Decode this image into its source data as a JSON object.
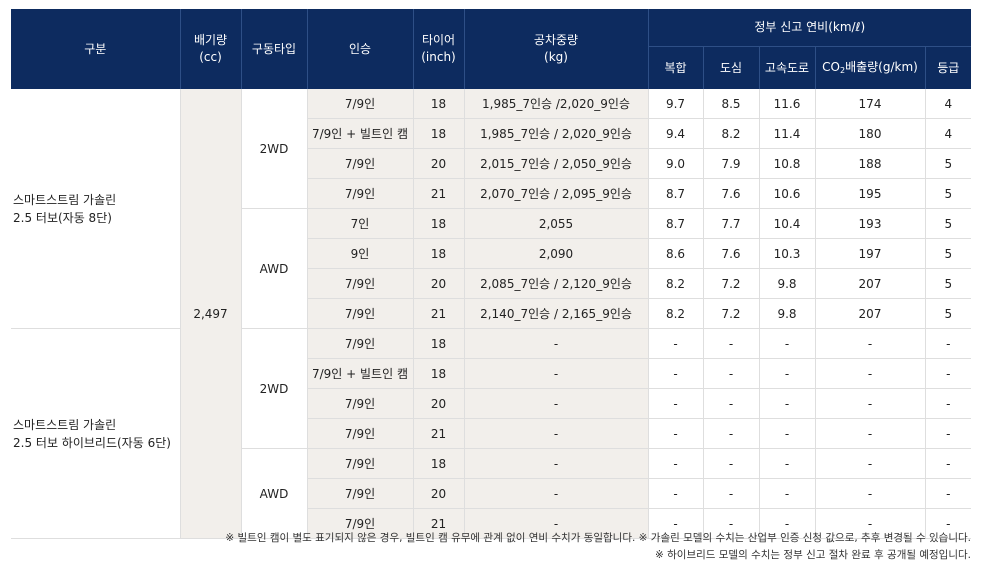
{
  "header": {
    "gubun": "구분",
    "displacement": "배기량",
    "displacement_unit": "(cc)",
    "drive": "구동타입",
    "seats": "인승",
    "tire": "타이어",
    "tire_unit": "(inch)",
    "weight": "공차중량",
    "weight_unit": "(kg)",
    "fuel_group": "정부 신고 연비(km/ℓ)",
    "combined": "복합",
    "city": "도심",
    "highway": "고속도로",
    "co2_prefix": "CO",
    "co2_sub": "2",
    "co2_suffix": "배출량(g/km)",
    "grade": "등급"
  },
  "groups": [
    {
      "label_line1": "스마트스트림 가솔린",
      "label_line2": "2.5 터보(자동 8단)",
      "drives": [
        {
          "drive": "2WD",
          "rows": [
            {
              "seats": "7/9인",
              "tire": "18",
              "weight": "1,985_7인승  /2,020_9인승",
              "combined": "9.7",
              "city": "8.5",
              "highway": "11.6",
              "co2": "174",
              "grade": "4"
            },
            {
              "seats": "7/9인 + 빌트인 캠",
              "tire": "18",
              "weight": "1,985_7인승 / 2,020_9인승",
              "combined": "9.4",
              "city": "8.2",
              "highway": "11.4",
              "co2": "180",
              "grade": "4"
            },
            {
              "seats": "7/9인",
              "tire": "20",
              "weight": "2,015_7인승 / 2,050_9인승",
              "combined": "9.0",
              "city": "7.9",
              "highway": "10.8",
              "co2": "188",
              "grade": "5"
            },
            {
              "seats": "7/9인",
              "tire": "21",
              "weight": "2,070_7인승 / 2,095_9인승",
              "combined": "8.7",
              "city": "7.6",
              "highway": "10.6",
              "co2": "195",
              "grade": "5"
            }
          ]
        },
        {
          "drive": "AWD",
          "rows": [
            {
              "seats": "7인",
              "tire": "18",
              "weight": "2,055",
              "combined": "8.7",
              "city": "7.7",
              "highway": "10.4",
              "co2": "193",
              "grade": "5"
            },
            {
              "seats": "9인",
              "tire": "18",
              "weight": "2,090",
              "combined": "8.6",
              "city": "7.6",
              "highway": "10.3",
              "co2": "197",
              "grade": "5"
            },
            {
              "seats": "7/9인",
              "tire": "20",
              "weight": "2,085_7인승 / 2,120_9인승",
              "combined": "8.2",
              "city": "7.2",
              "highway": "9.8",
              "co2": "207",
              "grade": "5"
            },
            {
              "seats": "7/9인",
              "tire": "21",
              "weight": "2,140_7인승 / 2,165_9인승",
              "combined": "8.2",
              "city": "7.2",
              "highway": "9.8",
              "co2": "207",
              "grade": "5"
            }
          ]
        }
      ]
    },
    {
      "label_line1": "스마트스트림 가솔린",
      "label_line2": "2.5 터보 하이브리드(자동 6단)",
      "drives": [
        {
          "drive": "2WD",
          "rows": [
            {
              "seats": "7/9인",
              "tire": "18",
              "weight": "-",
              "combined": "-",
              "city": "-",
              "highway": "-",
              "co2": "-",
              "grade": "-"
            },
            {
              "seats": "7/9인 + 빌트인 캠",
              "tire": "18",
              "weight": "-",
              "combined": "-",
              "city": "-",
              "highway": "-",
              "co2": "-",
              "grade": "-"
            },
            {
              "seats": "7/9인",
              "tire": "20",
              "weight": "-",
              "combined": "-",
              "city": "-",
              "highway": "-",
              "co2": "-",
              "grade": "-"
            },
            {
              "seats": "7/9인",
              "tire": "21",
              "weight": "-",
              "combined": "-",
              "city": "-",
              "highway": "-",
              "co2": "-",
              "grade": "-"
            }
          ]
        },
        {
          "drive": "AWD",
          "rows": [
            {
              "seats": "7/9인",
              "tire": "18",
              "weight": "-",
              "combined": "-",
              "city": "-",
              "highway": "-",
              "co2": "-",
              "grade": "-"
            },
            {
              "seats": "7/9인",
              "tire": "20",
              "weight": "-",
              "combined": "-",
              "city": "-",
              "highway": "-",
              "co2": "-",
              "grade": "-"
            },
            {
              "seats": "7/9인",
              "tire": "21",
              "weight": "-",
              "combined": "-",
              "city": "-",
              "highway": "-",
              "co2": "-",
              "grade": "-"
            }
          ]
        }
      ]
    }
  ],
  "displacement_value": "2,497",
  "notes": {
    "line1": "※ 빌트인 캠이 별도 표기되지 않은 경우, 빌트인 캠 유무에 관계 없이 연비 수치가 동일합니다.  ※ 가솔린 모델의 수치는 산업부 인증 신청 값으로, 추후 변경될 수 있습니다.",
    "line2": "※ 하이브리드 모델의 수치는 정부 신고 절차 완료 후 공개될 예정입니다."
  },
  "colors": {
    "header_bg": "#0d2b5f",
    "beige": "#f2efeb",
    "border": "#dedede"
  }
}
